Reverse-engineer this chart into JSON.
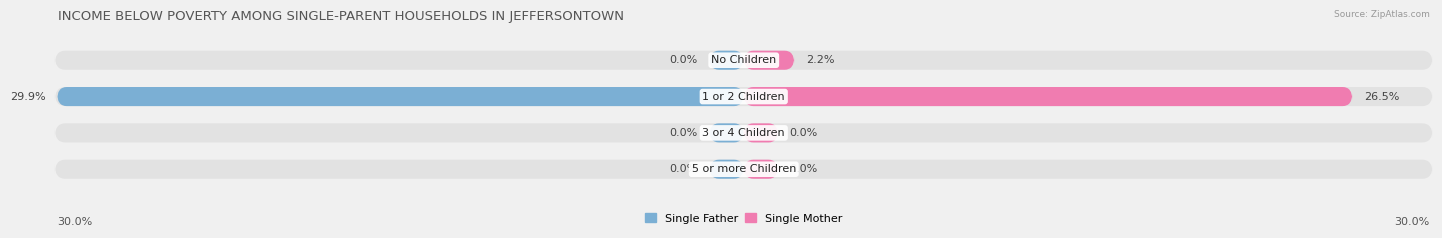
{
  "title": "INCOME BELOW POVERTY AMONG SINGLE-PARENT HOUSEHOLDS IN JEFFERSONTOWN",
  "source": "Source: ZipAtlas.com",
  "categories": [
    "No Children",
    "1 or 2 Children",
    "3 or 4 Children",
    "5 or more Children"
  ],
  "single_father": [
    0.0,
    29.9,
    0.0,
    0.0
  ],
  "single_mother": [
    2.2,
    26.5,
    0.0,
    0.0
  ],
  "x_max": 30.0,
  "min_bar_width": 1.5,
  "bar_height": 0.62,
  "father_color": "#7bafd4",
  "mother_color": "#f07cb0",
  "bg_color": "#f0f0f0",
  "bar_bg_color": "#e2e2e2",
  "title_fontsize": 9.5,
  "label_fontsize": 8,
  "tick_fontsize": 8,
  "source_fontsize": 6.5
}
